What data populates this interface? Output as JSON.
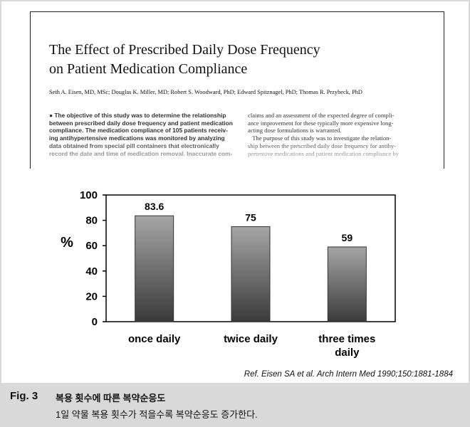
{
  "paper": {
    "title_line1": "The Effect of Prescribed Daily Dose Frequency",
    "title_line2": "on Patient Medication Compliance",
    "authors": "Seth A. Eisen, MD, MSc; Douglas K. Miller, MD; Robert S. Woodward, PhD; Edward Spitznagel, PhD; Thomas R. Przybeck, PhD",
    "abstract_lines": [
      "● The objective of this study was to determine the relationship",
      "between prescribed daily dose frequency and patient medication",
      "compliance. The medication compliance of 105 patients receiv-",
      "ing antihypertensive medications was monitored by analyzing",
      "data obtained from special pill containers that electronically",
      "record the date and time of medication removal. Inaccurate com-"
    ],
    "right_lines": [
      "claims and an assessment of the expected degree of compli-",
      "ance improvement for these typically more expensive long-",
      "acting dose formulations is warranted.",
      "   The purpose of this study was to investigate the relation-",
      "ship between the prescribed daily dose frequency for antihy-",
      "pertensive medications and patient medication compliance by"
    ]
  },
  "chart_data": {
    "type": "bar",
    "categories": [
      "once daily",
      "twice daily",
      "three times daily"
    ],
    "values": [
      83.6,
      75,
      59
    ],
    "data_labels": [
      "83.6",
      "75",
      "59"
    ],
    "ylabel": "%",
    "ylim": [
      0,
      100
    ],
    "yticks": [
      0,
      20,
      40,
      60,
      80,
      100
    ],
    "grid": false,
    "bar_gradient": [
      "#a6a6a6",
      "#3a3a3a"
    ]
  },
  "reference": "Ref. Eisen SA et al. Arch Intern Med 1990;150:1881-1884",
  "caption": {
    "label": "Fig. 3",
    "title": "복용 횟수에 따른 복약순응도",
    "description": "1일 약물 복용 횟수가 적을수록 복약순응도 증가한다."
  }
}
